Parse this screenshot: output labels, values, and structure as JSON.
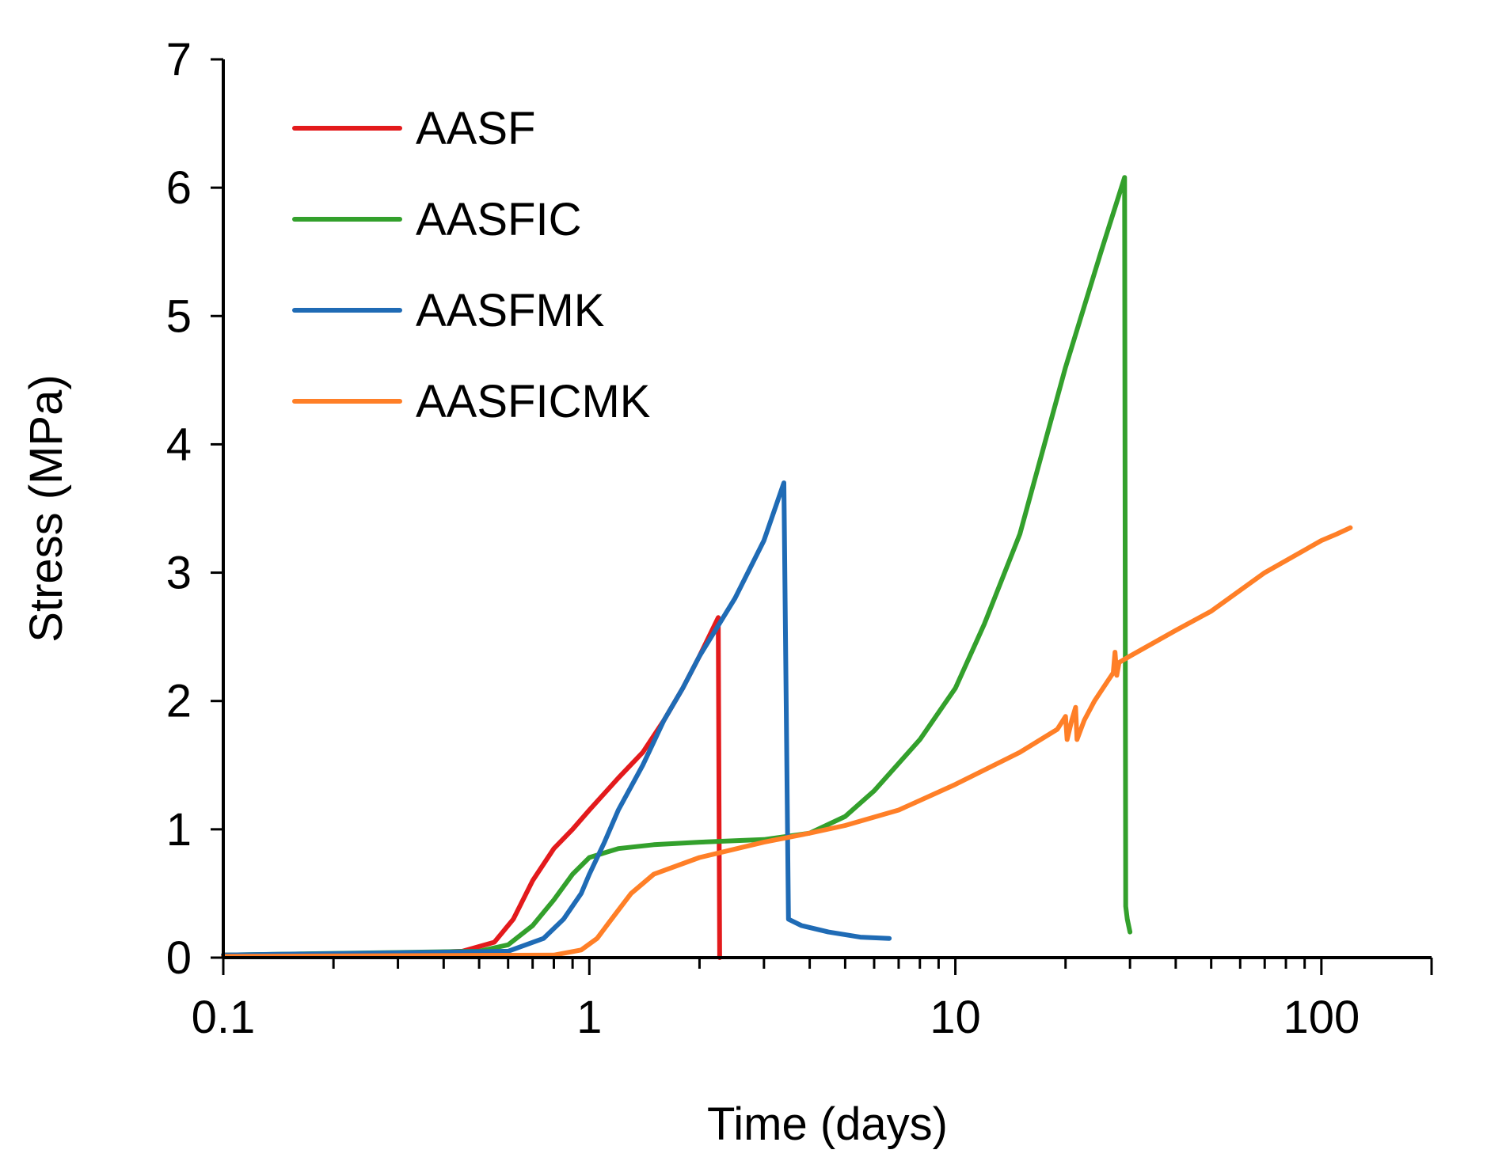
{
  "chart_data": {
    "type": "line",
    "title": "",
    "xlabel": "Time (days)",
    "ylabel": "Stress (MPa)",
    "xscale": "log",
    "xlim": [
      0.1,
      200
    ],
    "ylim": [
      0,
      7
    ],
    "x_ticks": [
      0.1,
      1,
      10,
      100
    ],
    "x_tick_labels": [
      "0.1",
      "1",
      "10",
      "100"
    ],
    "y_ticks": [
      0,
      1,
      2,
      3,
      4,
      5,
      6,
      7
    ],
    "y_tick_labels": [
      "0",
      "1",
      "2",
      "3",
      "4",
      "5",
      "6",
      "7"
    ],
    "grid": false,
    "legend_position": "top-left",
    "series": [
      {
        "name": "AASF",
        "color": "#e31a1c",
        "points": [
          [
            0.1,
            0.02
          ],
          [
            0.3,
            0.03
          ],
          [
            0.45,
            0.05
          ],
          [
            0.55,
            0.12
          ],
          [
            0.62,
            0.3
          ],
          [
            0.7,
            0.6
          ],
          [
            0.8,
            0.85
          ],
          [
            0.9,
            1.0
          ],
          [
            1.0,
            1.15
          ],
          [
            1.2,
            1.4
          ],
          [
            1.4,
            1.6
          ],
          [
            1.6,
            1.85
          ],
          [
            1.8,
            2.1
          ],
          [
            2.0,
            2.35
          ],
          [
            2.25,
            2.65
          ],
          [
            2.27,
            0.0
          ]
        ]
      },
      {
        "name": "AASFIC",
        "color": "#33a02c",
        "points": [
          [
            0.1,
            0.02
          ],
          [
            0.5,
            0.05
          ],
          [
            0.6,
            0.1
          ],
          [
            0.7,
            0.25
          ],
          [
            0.8,
            0.45
          ],
          [
            0.9,
            0.65
          ],
          [
            1.0,
            0.78
          ],
          [
            1.2,
            0.85
          ],
          [
            1.5,
            0.88
          ],
          [
            2.0,
            0.9
          ],
          [
            3.0,
            0.92
          ],
          [
            4.0,
            0.97
          ],
          [
            5.0,
            1.1
          ],
          [
            6.0,
            1.3
          ],
          [
            8.0,
            1.7
          ],
          [
            10.0,
            2.1
          ],
          [
            12.0,
            2.6
          ],
          [
            15.0,
            3.3
          ],
          [
            20.0,
            4.6
          ],
          [
            25.0,
            5.5
          ],
          [
            29.0,
            6.08
          ],
          [
            29.2,
            0.4
          ],
          [
            29.5,
            0.3
          ],
          [
            30.0,
            0.2
          ]
        ]
      },
      {
        "name": "AASFMK",
        "color": "#1f6bb5",
        "points": [
          [
            0.1,
            0.02
          ],
          [
            0.6,
            0.05
          ],
          [
            0.75,
            0.15
          ],
          [
            0.85,
            0.3
          ],
          [
            0.95,
            0.5
          ],
          [
            1.0,
            0.65
          ],
          [
            1.1,
            0.9
          ],
          [
            1.2,
            1.15
          ],
          [
            1.4,
            1.5
          ],
          [
            1.6,
            1.85
          ],
          [
            1.8,
            2.1
          ],
          [
            2.0,
            2.35
          ],
          [
            2.5,
            2.8
          ],
          [
            3.0,
            3.25
          ],
          [
            3.4,
            3.7
          ],
          [
            3.5,
            0.3
          ],
          [
            3.8,
            0.25
          ],
          [
            4.5,
            0.2
          ],
          [
            5.5,
            0.16
          ],
          [
            6.6,
            0.15
          ]
        ]
      },
      {
        "name": "AASFICMK",
        "color": "#ff7f27",
        "points": [
          [
            0.1,
            0.01
          ],
          [
            0.8,
            0.02
          ],
          [
            0.95,
            0.06
          ],
          [
            1.05,
            0.15
          ],
          [
            1.15,
            0.3
          ],
          [
            1.3,
            0.5
          ],
          [
            1.5,
            0.65
          ],
          [
            2.0,
            0.78
          ],
          [
            3.0,
            0.9
          ],
          [
            4.0,
            0.97
          ],
          [
            5.0,
            1.03
          ],
          [
            7.0,
            1.15
          ],
          [
            10.0,
            1.35
          ],
          [
            15.0,
            1.6
          ],
          [
            19.0,
            1.78
          ],
          [
            20.0,
            1.88
          ],
          [
            20.2,
            1.7
          ],
          [
            20.8,
            1.85
          ],
          [
            21.3,
            1.95
          ],
          [
            21.5,
            1.7
          ],
          [
            22.5,
            1.85
          ],
          [
            24.0,
            2.0
          ],
          [
            26.0,
            2.15
          ],
          [
            27.0,
            2.22
          ],
          [
            27.3,
            2.38
          ],
          [
            27.6,
            2.2
          ],
          [
            28.0,
            2.3
          ],
          [
            30.0,
            2.35
          ],
          [
            40.0,
            2.55
          ],
          [
            50.0,
            2.7
          ],
          [
            70.0,
            3.0
          ],
          [
            100.0,
            3.25
          ],
          [
            110.0,
            3.3
          ],
          [
            120.0,
            3.35
          ]
        ]
      }
    ]
  }
}
